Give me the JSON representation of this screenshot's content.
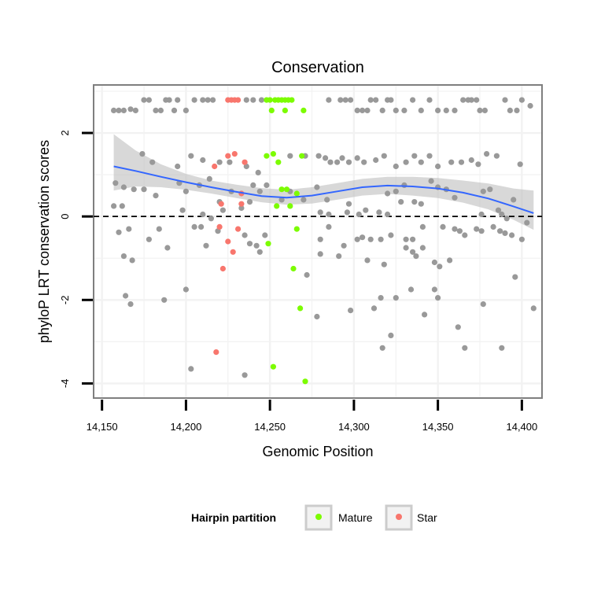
{
  "chart_data": {
    "type": "scatter",
    "title": "Conservation",
    "xlabel": "Genomic Position",
    "ylabel": "phyloP LRT conservation scores",
    "xlim": [
      14145,
      14412
    ],
    "ylim": [
      -4.35,
      3.15
    ],
    "x_ticks": [
      14150,
      14200,
      14250,
      14300,
      14350,
      14400
    ],
    "x_tick_labels": [
      "14,150",
      "14,200",
      "14,250",
      "14,300",
      "14,350",
      "14,400"
    ],
    "y_ticks": [
      -4,
      -2,
      0,
      2
    ],
    "y_tick_labels": [
      "-4",
      "-2",
      "0",
      "2"
    ],
    "reference_line": {
      "y": 0,
      "style": "dashed"
    },
    "colors": {
      "other": "#999999",
      "Mature": "#7CFC00",
      "Star": "#F8766D",
      "smooth_line": "#3366FF",
      "smooth_band": "#BEBEBE"
    },
    "legend": {
      "title": "Hairpin partition",
      "position": "bottom",
      "entries": [
        {
          "label": "Mature",
          "color": "#7CFC00"
        },
        {
          "label": "Star",
          "color": "#F8766D"
        }
      ]
    },
    "smooth": {
      "x": [
        14157,
        14170,
        14185,
        14200,
        14215,
        14230,
        14245,
        14260,
        14275,
        14290,
        14305,
        14320,
        14335,
        14350,
        14365,
        14380,
        14395,
        14407
      ],
      "y": [
        1.2,
        1.09,
        0.95,
        0.82,
        0.7,
        0.59,
        0.49,
        0.45,
        0.5,
        0.6,
        0.7,
        0.74,
        0.72,
        0.67,
        0.57,
        0.43,
        0.24,
        0.08
      ],
      "lower": [
        0.62,
        0.72,
        0.7,
        0.64,
        0.55,
        0.44,
        0.34,
        0.28,
        0.31,
        0.4,
        0.5,
        0.54,
        0.5,
        0.44,
        0.33,
        0.17,
        -0.08,
        -0.32
      ],
      "upper": [
        1.97,
        1.58,
        1.25,
        1.02,
        0.86,
        0.76,
        0.68,
        0.64,
        0.7,
        0.8,
        0.9,
        0.95,
        0.95,
        0.92,
        0.86,
        0.79,
        0.67,
        0.62
      ]
    },
    "series": [
      {
        "name": "Other",
        "points": [
          [
            14157,
            2.54
          ],
          [
            14160,
            2.54
          ],
          [
            14163,
            2.54
          ],
          [
            14167,
            2.57
          ],
          [
            14170,
            2.54
          ],
          [
            14175,
            2.79
          ],
          [
            14178,
            2.79
          ],
          [
            14182,
            2.54
          ],
          [
            14185,
            2.54
          ],
          [
            14188,
            2.79
          ],
          [
            14190,
            2.79
          ],
          [
            14193,
            2.54
          ],
          [
            14195,
            2.79
          ],
          [
            14200,
            2.54
          ],
          [
            14205,
            2.79
          ],
          [
            14210,
            2.79
          ],
          [
            14213,
            2.79
          ],
          [
            14216,
            2.79
          ],
          [
            14236,
            2.79
          ],
          [
            14240,
            2.79
          ],
          [
            14245,
            2.79
          ],
          [
            14285,
            2.79
          ],
          [
            14292,
            2.79
          ],
          [
            14295,
            2.79
          ],
          [
            14298,
            2.79
          ],
          [
            14302,
            2.54
          ],
          [
            14305,
            2.54
          ],
          [
            14308,
            2.54
          ],
          [
            14310,
            2.79
          ],
          [
            14313,
            2.79
          ],
          [
            14317,
            2.54
          ],
          [
            14320,
            2.79
          ],
          [
            14322,
            2.79
          ],
          [
            14325,
            2.54
          ],
          [
            14330,
            2.54
          ],
          [
            14335,
            2.79
          ],
          [
            14340,
            2.54
          ],
          [
            14345,
            2.79
          ],
          [
            14350,
            2.54
          ],
          [
            14355,
            2.54
          ],
          [
            14360,
            2.54
          ],
          [
            14365,
            2.79
          ],
          [
            14368,
            2.79
          ],
          [
            14370,
            2.79
          ],
          [
            14373,
            2.79
          ],
          [
            14375,
            2.54
          ],
          [
            14378,
            2.54
          ],
          [
            14390,
            2.79
          ],
          [
            14393,
            2.54
          ],
          [
            14397,
            2.54
          ],
          [
            14400,
            2.79
          ],
          [
            14405,
            2.65
          ],
          [
            14174,
            1.5
          ],
          [
            14180,
            1.3
          ],
          [
            14195,
            1.2
          ],
          [
            14203,
            1.45
          ],
          [
            14210,
            1.35
          ],
          [
            14220,
            1.3
          ],
          [
            14226,
            1.3
          ],
          [
            14236,
            1.2
          ],
          [
            14243,
            1.05
          ],
          [
            14262,
            1.45
          ],
          [
            14271,
            1.45
          ],
          [
            14279,
            1.45
          ],
          [
            14283,
            1.4
          ],
          [
            14286,
            1.3
          ],
          [
            14290,
            1.3
          ],
          [
            14293,
            1.4
          ],
          [
            14297,
            1.3
          ],
          [
            14302,
            1.4
          ],
          [
            14306,
            1.3
          ],
          [
            14313,
            1.35
          ],
          [
            14318,
            1.45
          ],
          [
            14325,
            1.2
          ],
          [
            14331,
            1.3
          ],
          [
            14336,
            1.45
          ],
          [
            14340,
            1.3
          ],
          [
            14345,
            1.45
          ],
          [
            14350,
            1.2
          ],
          [
            14358,
            1.3
          ],
          [
            14364,
            1.3
          ],
          [
            14370,
            1.35
          ],
          [
            14374,
            1.25
          ],
          [
            14379,
            1.5
          ],
          [
            14385,
            1.45
          ],
          [
            14399,
            1.25
          ],
          [
            14158,
            0.8
          ],
          [
            14163,
            0.7
          ],
          [
            14169,
            0.65
          ],
          [
            14175,
            0.65
          ],
          [
            14182,
            0.5
          ],
          [
            14196,
            0.8
          ],
          [
            14200,
            0.6
          ],
          [
            14208,
            0.75
          ],
          [
            14214,
            0.9
          ],
          [
            14220,
            0.35
          ],
          [
            14227,
            0.6
          ],
          [
            14240,
            0.75
          ],
          [
            14244,
            0.6
          ],
          [
            14248,
            0.75
          ],
          [
            14257,
            0.4
          ],
          [
            14262,
            0.6
          ],
          [
            14270,
            0.4
          ],
          [
            14278,
            0.7
          ],
          [
            14284,
            0.4
          ],
          [
            14297,
            0.3
          ],
          [
            14320,
            0.55
          ],
          [
            14325,
            0.6
          ],
          [
            14330,
            0.75
          ],
          [
            14336,
            0.35
          ],
          [
            14346,
            0.85
          ],
          [
            14350,
            0.7
          ],
          [
            14355,
            0.65
          ],
          [
            14360,
            0.45
          ],
          [
            14377,
            0.6
          ],
          [
            14381,
            0.65
          ],
          [
            14386,
            0.15
          ],
          [
            14395,
            0.4
          ],
          [
            14157,
            0.25
          ],
          [
            14162,
            0.25
          ],
          [
            14198,
            0.15
          ],
          [
            14210,
            0.05
          ],
          [
            14215,
            -0.05
          ],
          [
            14222,
            0.15
          ],
          [
            14233,
            0.2
          ],
          [
            14238,
            0.35
          ],
          [
            14280,
            0.1
          ],
          [
            14285,
            0.05
          ],
          [
            14296,
            0.1
          ],
          [
            14303,
            0.05
          ],
          [
            14307,
            0.15
          ],
          [
            14315,
            0.1
          ],
          [
            14320,
            0.05
          ],
          [
            14328,
            0.35
          ],
          [
            14340,
            0.3
          ],
          [
            14376,
            0.05
          ],
          [
            14388,
            0.05
          ],
          [
            14391,
            -0.05
          ],
          [
            14403,
            -0.15
          ],
          [
            14160,
            -0.38
          ],
          [
            14166,
            -0.3
          ],
          [
            14178,
            -0.55
          ],
          [
            14184,
            -0.3
          ],
          [
            14189,
            -0.75
          ],
          [
            14205,
            -0.25
          ],
          [
            14209,
            -0.25
          ],
          [
            14212,
            -0.7
          ],
          [
            14219,
            -0.35
          ],
          [
            14235,
            -0.45
          ],
          [
            14238,
            -0.65
          ],
          [
            14242,
            -0.7
          ],
          [
            14244,
            -0.85
          ],
          [
            14247,
            -0.45
          ],
          [
            14280,
            -0.55
          ],
          [
            14285,
            -0.25
          ],
          [
            14294,
            -0.7
          ],
          [
            14302,
            -0.55
          ],
          [
            14305,
            -0.5
          ],
          [
            14310,
            -0.55
          ],
          [
            14316,
            -0.55
          ],
          [
            14322,
            -0.45
          ],
          [
            14331,
            -0.55
          ],
          [
            14335,
            -0.55
          ],
          [
            14341,
            -0.25
          ],
          [
            14353,
            -0.25
          ],
          [
            14360,
            -0.3
          ],
          [
            14363,
            -0.35
          ],
          [
            14366,
            -0.45
          ],
          [
            14373,
            -0.3
          ],
          [
            14376,
            -0.35
          ],
          [
            14383,
            -0.25
          ],
          [
            14387,
            -0.35
          ],
          [
            14390,
            -0.4
          ],
          [
            14394,
            -0.45
          ],
          [
            14400,
            -0.55
          ],
          [
            14163,
            -0.95
          ],
          [
            14168,
            -1.05
          ],
          [
            14280,
            -0.9
          ],
          [
            14291,
            -0.95
          ],
          [
            14308,
            -1.05
          ],
          [
            14318,
            -1.15
          ],
          [
            14331,
            -0.75
          ],
          [
            14335,
            -0.85
          ],
          [
            14337,
            -0.95
          ],
          [
            14341,
            -0.75
          ],
          [
            14348,
            -1.1
          ],
          [
            14351,
            -1.2
          ],
          [
            14357,
            -1.05
          ],
          [
            14396,
            -1.45
          ],
          [
            14164,
            -1.9
          ],
          [
            14167,
            -2.1
          ],
          [
            14187,
            -2.0
          ],
          [
            14200,
            -1.75
          ],
          [
            14272,
            -1.4
          ],
          [
            14316,
            -1.95
          ],
          [
            14325,
            -1.95
          ],
          [
            14334,
            -1.75
          ],
          [
            14342,
            -2.35
          ],
          [
            14348,
            -1.75
          ],
          [
            14350,
            -1.95
          ],
          [
            14377,
            -2.1
          ],
          [
            14407,
            -2.2
          ],
          [
            14278,
            -2.4
          ],
          [
            14298,
            -2.25
          ],
          [
            14312,
            -2.2
          ],
          [
            14317,
            -3.15
          ],
          [
            14322,
            -2.85
          ],
          [
            14362,
            -2.65
          ],
          [
            14366,
            -3.15
          ],
          [
            14388,
            -3.15
          ],
          [
            14203,
            -3.65
          ],
          [
            14235,
            -3.8
          ]
        ]
      },
      {
        "name": "Mature",
        "points": [
          [
            14248,
            2.79
          ],
          [
            14250,
            2.79
          ],
          [
            14253,
            2.79
          ],
          [
            14255,
            2.79
          ],
          [
            14257,
            2.79
          ],
          [
            14259,
            2.79
          ],
          [
            14261,
            2.79
          ],
          [
            14263,
            2.79
          ],
          [
            14251,
            2.54
          ],
          [
            14259,
            2.54
          ],
          [
            14270,
            2.54
          ],
          [
            14248,
            1.45
          ],
          [
            14252,
            1.5
          ],
          [
            14255,
            1.3
          ],
          [
            14269,
            1.45
          ],
          [
            14257,
            0.65
          ],
          [
            14260,
            0.65
          ],
          [
            14266,
            0.55
          ],
          [
            14254,
            0.25
          ],
          [
            14262,
            0.25
          ],
          [
            14266,
            -0.3
          ],
          [
            14249,
            -0.65
          ],
          [
            14264,
            -1.25
          ],
          [
            14268,
            -2.2
          ],
          [
            14252,
            -3.6
          ],
          [
            14271,
            -3.95
          ]
        ]
      },
      {
        "name": "Star",
        "points": [
          [
            14225,
            2.79
          ],
          [
            14227,
            2.79
          ],
          [
            14229,
            2.79
          ],
          [
            14231,
            2.79
          ],
          [
            14225,
            1.45
          ],
          [
            14229,
            1.5
          ],
          [
            14235,
            1.3
          ],
          [
            14217,
            1.2
          ],
          [
            14233,
            0.55
          ],
          [
            14221,
            0.3
          ],
          [
            14233,
            0.3
          ],
          [
            14220,
            -0.25
          ],
          [
            14231,
            -0.3
          ],
          [
            14225,
            -0.6
          ],
          [
            14228,
            -0.85
          ],
          [
            14222,
            -1.25
          ],
          [
            14218,
            -3.25
          ]
        ]
      }
    ]
  }
}
